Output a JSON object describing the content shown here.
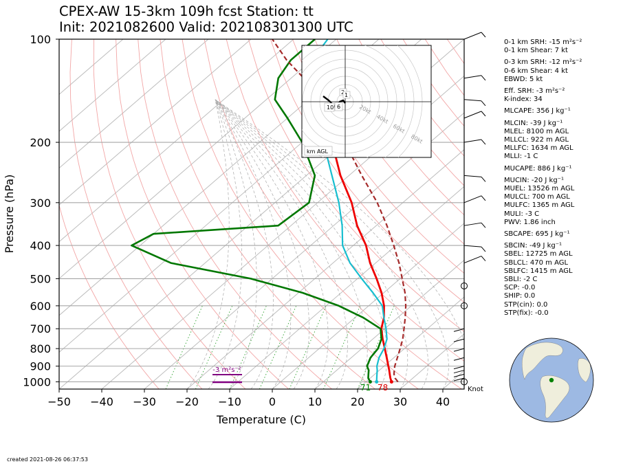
{
  "title": {
    "line1": "CPEX-AW 15-3km  109h fcst  Station: tt",
    "line2": "Init: 2021082600  Valid: 202108301300 UTC"
  },
  "created": "created 2021-08-26 06:37:53",
  "chart_data": {
    "type": "line",
    "subtype": "skew-T log-P",
    "xlabel": "Temperature (C)",
    "ylabel": "Pressure (hPa)",
    "xlim": [
      -50,
      45
    ],
    "ylim": [
      1050,
      100
    ],
    "y_scale": "log",
    "x_ticks": [
      -50,
      -40,
      -30,
      -20,
      -10,
      0,
      10,
      20,
      30,
      40
    ],
    "x_tick_labels": [
      "−50",
      "−40",
      "−30",
      "−20",
      "−10",
      "0",
      "10",
      "20",
      "30",
      "40"
    ],
    "y_ticks": [
      100,
      200,
      300,
      400,
      500,
      600,
      700,
      800,
      900,
      1000
    ],
    "grid": true,
    "colors": {
      "temperature": "#ee0000",
      "dewpoint": "#007700",
      "wetbulb": "#17becf",
      "parcel": "#a52a2a",
      "dry_adiabat": "#f2a6a6",
      "moist_adiabat": "#a9a9a9",
      "mixing_ratio": "#2ca02c",
      "srh_bar": "#800080"
    },
    "series": [
      {
        "key": "temperature",
        "pressure": [
          1000,
          975,
          950,
          925,
          900,
          850,
          800,
          750,
          700,
          650,
          600,
          550,
          500,
          450,
          400,
          350,
          300,
          250,
          200,
          170,
          150
        ],
        "temp_c": [
          26,
          24.7,
          23.5,
          22.3,
          21,
          18.3,
          15.4,
          12.3,
          9.2,
          6.8,
          3.6,
          -0.5,
          -5.5,
          -11.3,
          -17,
          -24.5,
          -32,
          -42,
          -53,
          -61,
          -67
        ]
      },
      {
        "key": "wetbulb",
        "pressure": [
          1000,
          975,
          950,
          925,
          900,
          850,
          800,
          750,
          700,
          650,
          600,
          550,
          500,
          450,
          400,
          350,
          300,
          250,
          200,
          170,
          150,
          130,
          115,
          100
        ],
        "temp_c": [
          22.5,
          21.5,
          20.5,
          19.5,
          18.3,
          16.5,
          15.2,
          13.3,
          10.3,
          6.8,
          3.2,
          -2.5,
          -9,
          -16,
          -22.5,
          -28,
          -35,
          -44,
          -55,
          -63,
          -70,
          -76,
          -80,
          -82
        ]
      },
      {
        "key": "dewpoint",
        "pressure": [
          1000,
          975,
          950,
          925,
          900,
          850,
          800,
          750,
          700,
          650,
          600,
          550,
          500,
          450,
          400,
          370,
          350,
          300,
          250,
          200,
          170,
          150,
          130,
          115,
          100
        ],
        "temp_c": [
          21,
          19.5,
          18.5,
          17.5,
          16,
          14.5,
          13.8,
          12,
          9,
          2,
          -7,
          -19,
          -35,
          -58,
          -72,
          -70,
          -43,
          -42,
          -48,
          -60,
          -70,
          -78,
          -83,
          -85,
          -85
        ]
      },
      {
        "key": "parcel",
        "pressure": [
          1000,
          975,
          950,
          925,
          900,
          850,
          800,
          750,
          700,
          650,
          600,
          550,
          500,
          450,
          400,
          350,
          300,
          250,
          200,
          170,
          150,
          130,
          115,
          100
        ],
        "temp_c": [
          27.5,
          25.8,
          24.5,
          23.5,
          22.5,
          20.8,
          19,
          17,
          14.5,
          11.8,
          8.7,
          5,
          0.5,
          -4.5,
          -10.5,
          -17.5,
          -26,
          -37,
          -50,
          -60,
          -68,
          -77,
          -86,
          -95
        ]
      }
    ],
    "surface_labels": {
      "dewpoint": "71",
      "temperature": "78"
    },
    "srh_label": "-3 m²s⁻²",
    "wind_unit_label": "Knot",
    "hodograph": {
      "ring_labels": [
        "20kt",
        "40kt",
        "60kt",
        "80kt"
      ],
      "height_labels": [
        "2",
        "1",
        "10",
        "6"
      ],
      "axis_label": "km AGL"
    },
    "indices": [
      "0-1 km SRH: -15 m²s⁻²",
      "0-1 km Shear: 7 kt",
      "0-3 km SRH: -12 m²s⁻²",
      "0-6 km Shear: 4 kt",
      "EBWD: 5 kt",
      "Eff. SRH: -3 m²s⁻²",
      "K-index: 34",
      "MLCAPE: 356 J kg⁻¹",
      "MLCIN: -39 J kg⁻¹",
      "MLEL: 8100 m AGL",
      "MLLCL: 922 m AGL",
      "MLLFC: 1634 m AGL",
      "MLLI: -1 C",
      "MUCAPE: 886 J kg⁻¹",
      "MUCIN: -20 J kg⁻¹",
      "MUEL: 13526 m AGL",
      "MULCL: 700 m AGL",
      "MULFC: 1365 m AGL",
      "MULI: -3 C",
      "PWV: 1.86 inch",
      "SBCAPE: 695 J kg⁻¹",
      "SBCIN: -49 J kg⁻¹",
      "SBEL: 12725 m AGL",
      "SBLCL: 470 m AGL",
      "SBLFC: 1415 m AGL",
      "SBLI: -2 C",
      "SCP: -0.0",
      "SHIP: 0.0",
      "STP(cin): 0.0",
      "STP(fix): -0.0"
    ]
  }
}
